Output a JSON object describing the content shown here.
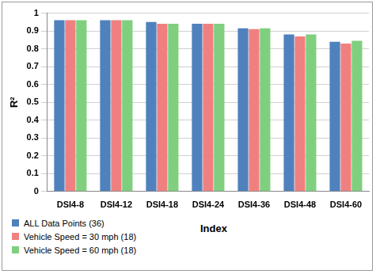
{
  "chart_data": {
    "type": "bar",
    "x_label": "Index",
    "y_label": "R²",
    "categories": [
      "DSI4-8",
      "DSI4-12",
      "DSI4-18",
      "DSI4-24",
      "DSI4-36",
      "DSI4-48",
      "DSI4-60"
    ],
    "series": [
      {
        "name": "ALL Data Points (36)",
        "color": "#4f81bd",
        "values": [
          0.96,
          0.96,
          0.95,
          0.94,
          0.915,
          0.88,
          0.84
        ]
      },
      {
        "name": "Vehicle Speed = 30 mph (18)",
        "color": "#f08080",
        "values": [
          0.96,
          0.96,
          0.94,
          0.94,
          0.91,
          0.87,
          0.83
        ]
      },
      {
        "name": "Vehicle Speed = 60 mph (18)",
        "color": "#7fcf7f",
        "values": [
          0.96,
          0.96,
          0.94,
          0.94,
          0.915,
          0.88,
          0.845
        ]
      }
    ],
    "ylim": [
      0,
      1
    ],
    "yticks": [
      0,
      0.1,
      0.2,
      0.3,
      0.4,
      0.5,
      0.6,
      0.7,
      0.8,
      0.9,
      1
    ],
    "grid": true,
    "legend": "lower left"
  }
}
